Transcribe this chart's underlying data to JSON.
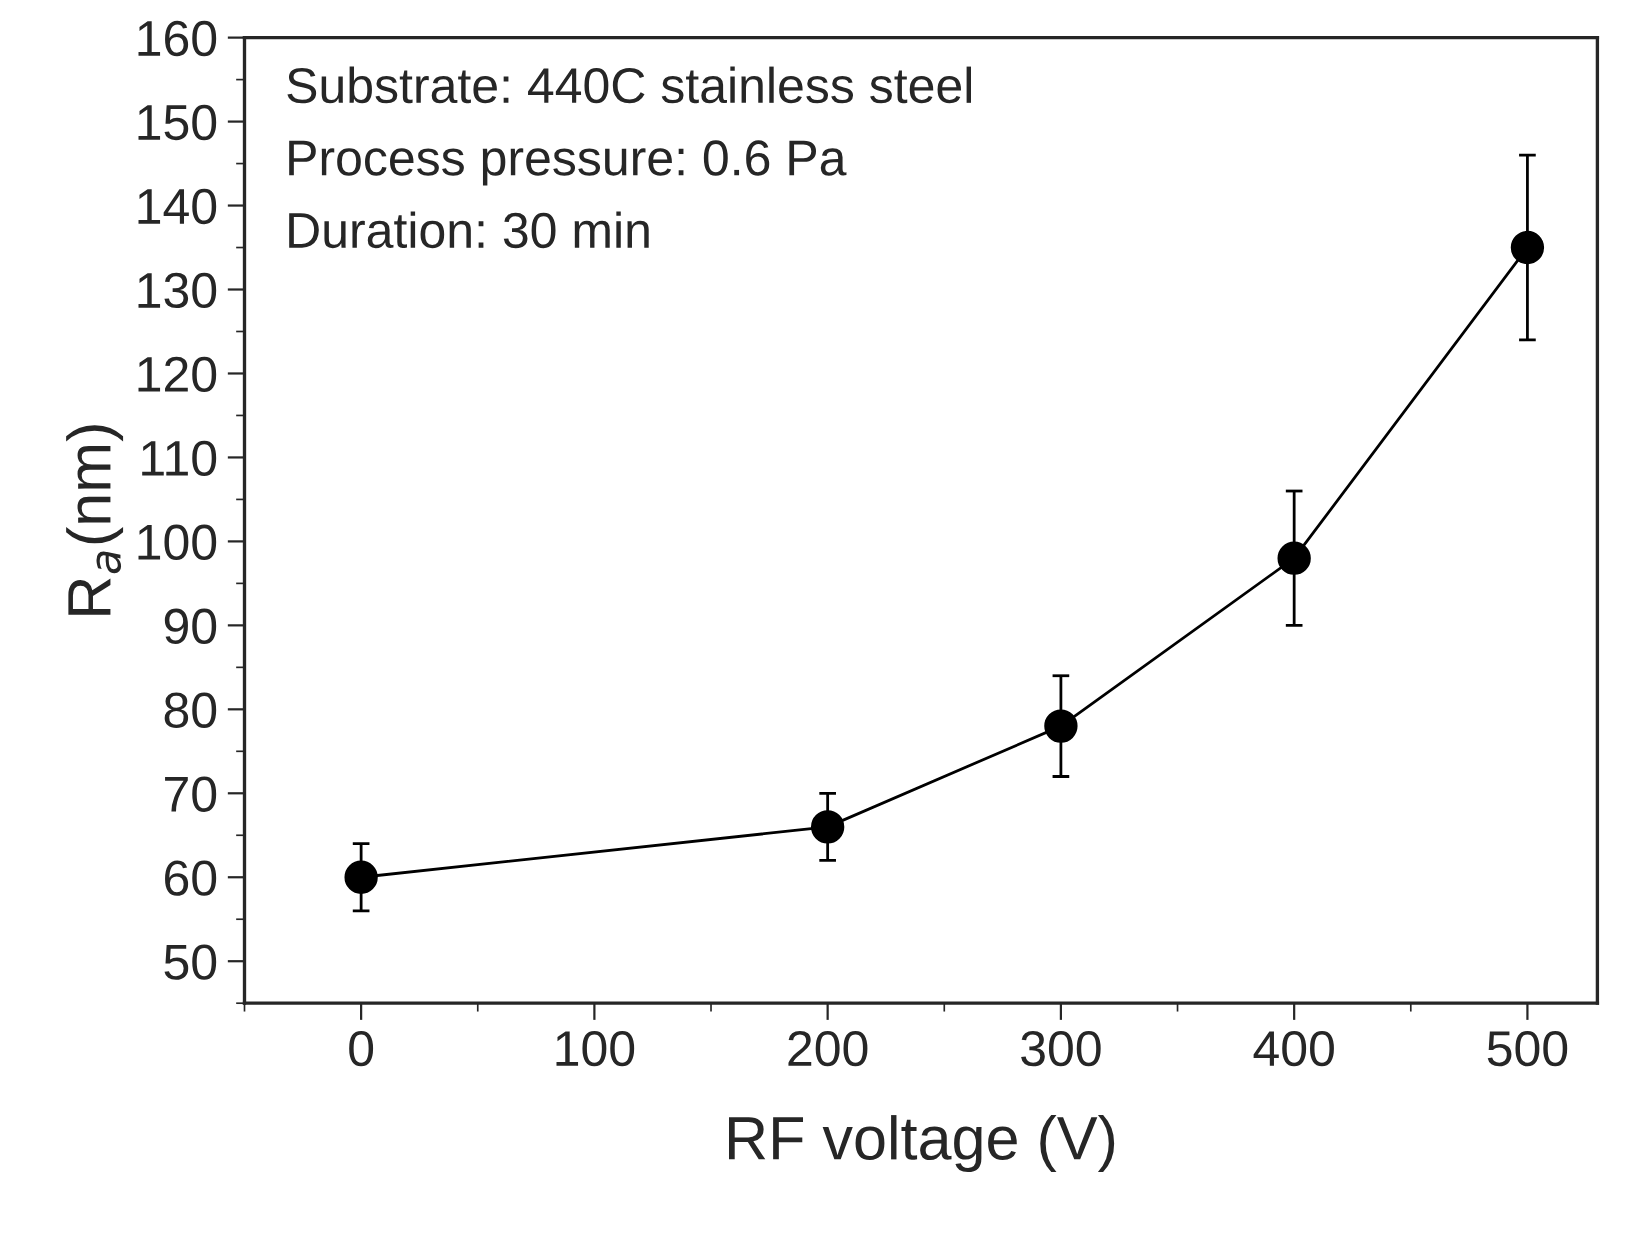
{
  "chart_data": {
    "type": "line",
    "xlabel": "RF voltage (V)",
    "ylabel": "R$_{a}$(nm)",
    "x": [
      0,
      200,
      300,
      400,
      500
    ],
    "series": [
      {
        "color": "#000000",
        "values": [
          60,
          66,
          78,
          98,
          135
        ],
        "errors": [
          4,
          4,
          6,
          8,
          11
        ]
      }
    ],
    "marker": "circle",
    "line_style": "solid",
    "xlim": [
      -50,
      530
    ],
    "xticks": [
      0,
      100,
      200,
      300,
      400,
      500
    ],
    "ylim": [
      45,
      160
    ],
    "yticks": [
      50,
      60,
      70,
      80,
      90,
      100,
      110,
      120,
      130,
      140,
      150,
      160
    ],
    "annotations": [
      "Substrate: 440C stainless steel",
      "Process pressure: 0.6 Pa",
      "Duration: 30 min"
    ],
    "grid": false,
    "legend": false
  }
}
